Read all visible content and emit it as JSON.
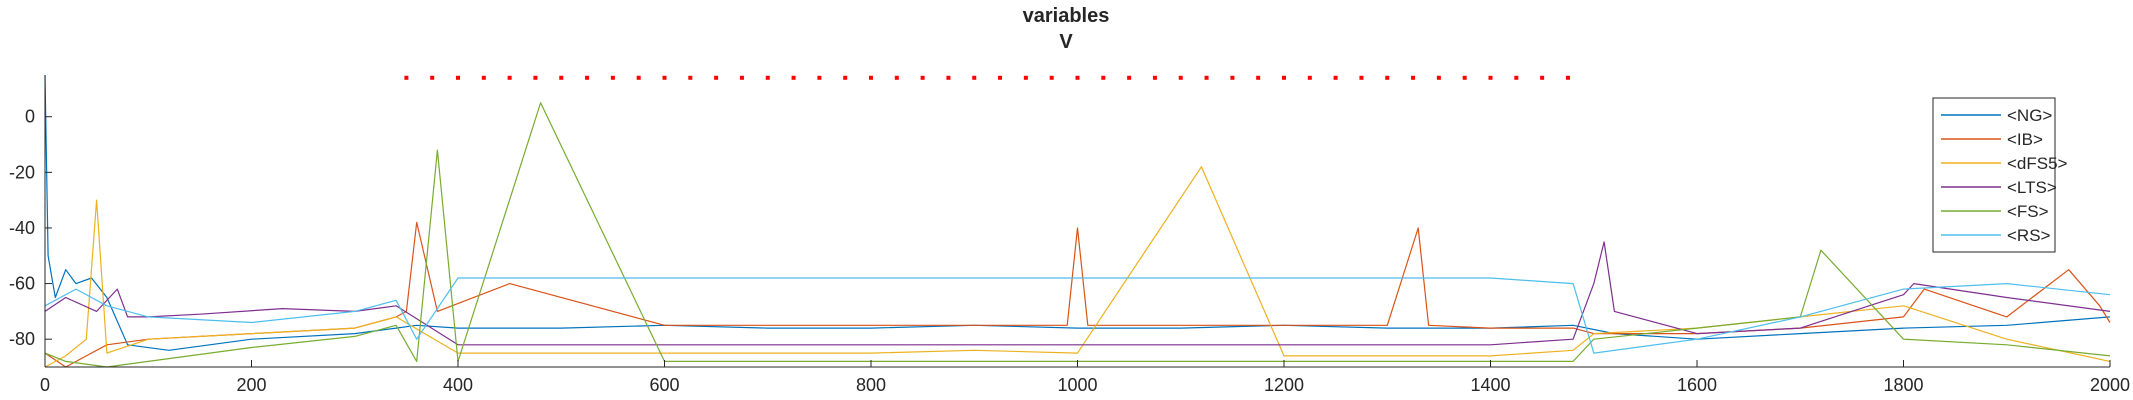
{
  "chart_data": {
    "type": "line",
    "title": "variables",
    "subtitle": "V",
    "xlabel": "",
    "ylabel": "",
    "xlim": [
      0,
      2000
    ],
    "ylim": [
      -90,
      15
    ],
    "xticks": [
      0,
      200,
      400,
      600,
      800,
      1000,
      1200,
      1400,
      1600,
      1800,
      2000
    ],
    "yticks": [
      0,
      -20,
      -40,
      -60,
      -80
    ],
    "grid": false,
    "legend_position": "top-right",
    "stimulus_markers": {
      "color": "#ff0000",
      "y": 14,
      "start": 350,
      "end": 1480,
      "spacing": 25
    },
    "series": [
      {
        "name": "<NG>",
        "color": "#0072BD",
        "x": [
          0,
          3,
          10,
          20,
          30,
          45,
          60,
          80,
          120,
          200,
          300,
          340,
          360,
          400,
          500,
          600,
          700,
          800,
          900,
          1000,
          1100,
          1200,
          1300,
          1400,
          1480,
          1520,
          1600,
          1700,
          1800,
          1900,
          2000
        ],
        "values": [
          15,
          -50,
          -65,
          -55,
          -60,
          -58,
          -65,
          -82,
          -84,
          -80,
          -78,
          -76,
          -75,
          -76,
          -76,
          -75,
          -76,
          -76,
          -75,
          -76,
          -76,
          -75,
          -76,
          -76,
          -75,
          -78,
          -80,
          -78,
          -76,
          -75,
          -72
        ]
      },
      {
        "name": "<IB>",
        "color": "#D95319",
        "x": [
          0,
          20,
          40,
          60,
          100,
          200,
          300,
          340,
          350,
          360,
          380,
          450,
          600,
          800,
          990,
          1000,
          1010,
          1100,
          1300,
          1330,
          1340,
          1400,
          1480,
          1500,
          1600,
          1700,
          1800,
          1820,
          1900,
          1960,
          1990,
          2000
        ],
        "values": [
          -85,
          -90,
          -86,
          -82,
          -80,
          -78,
          -76,
          -72,
          -70,
          -38,
          -70,
          -60,
          -75,
          -75,
          -75,
          -40,
          -75,
          -75,
          -75,
          -40,
          -75,
          -76,
          -76,
          -78,
          -78,
          -76,
          -72,
          -62,
          -72,
          -55,
          -68,
          -74
        ]
      },
      {
        "name": "<dFS5>",
        "color": "#EDB120",
        "x": [
          0,
          20,
          40,
          50,
          60,
          100,
          200,
          300,
          340,
          400,
          500,
          600,
          800,
          900,
          1000,
          1120,
          1200,
          1400,
          1480,
          1500,
          1600,
          1700,
          1800,
          1900,
          2000
        ],
        "values": [
          -90,
          -86,
          -80,
          -30,
          -85,
          -80,
          -78,
          -76,
          -72,
          -85,
          -85,
          -85,
          -85,
          -84,
          -85,
          -18,
          -86,
          -86,
          -84,
          -78,
          -76,
          -72,
          -68,
          -80,
          -88
        ]
      },
      {
        "name": "<LTS>",
        "color": "#7E2F8E",
        "x": [
          0,
          20,
          50,
          70,
          80,
          100,
          150,
          230,
          300,
          340,
          400,
          600,
          800,
          1000,
          1200,
          1400,
          1480,
          1500,
          1510,
          1520,
          1600,
          1700,
          1800,
          1810,
          1900,
          2000
        ],
        "values": [
          -70,
          -65,
          -70,
          -62,
          -72,
          -72,
          -71,
          -69,
          -70,
          -68,
          -82,
          -82,
          -82,
          -82,
          -82,
          -82,
          -80,
          -60,
          -45,
          -70,
          -78,
          -76,
          -64,
          -60,
          -65,
          -70
        ]
      },
      {
        "name": "<FS>",
        "color": "#77AC30",
        "x": [
          0,
          20,
          60,
          100,
          200,
          300,
          340,
          360,
          380,
          400,
          480,
          600,
          800,
          1000,
          1200,
          1400,
          1480,
          1500,
          1600,
          1700,
          1720,
          1800,
          1900,
          2000
        ],
        "values": [
          -85,
          -88,
          -90,
          -88,
          -83,
          -79,
          -75,
          -88,
          -12,
          -88,
          5,
          -88,
          -88,
          -88,
          -88,
          -88,
          -88,
          -80,
          -76,
          -72,
          -48,
          -80,
          -82,
          -86
        ]
      },
      {
        "name": "<RS>",
        "color": "#4DBEEE",
        "x": [
          0,
          30,
          60,
          100,
          200,
          300,
          340,
          360,
          400,
          600,
          800,
          1000,
          1200,
          1400,
          1480,
          1500,
          1600,
          1700,
          1800,
          1900,
          2000
        ],
        "values": [
          -68,
          -62,
          -68,
          -72,
          -74,
          -70,
          -66,
          -80,
          -58,
          -58,
          -58,
          -58,
          -58,
          -58,
          -60,
          -85,
          -80,
          -72,
          -62,
          -60,
          -64
        ]
      }
    ]
  }
}
